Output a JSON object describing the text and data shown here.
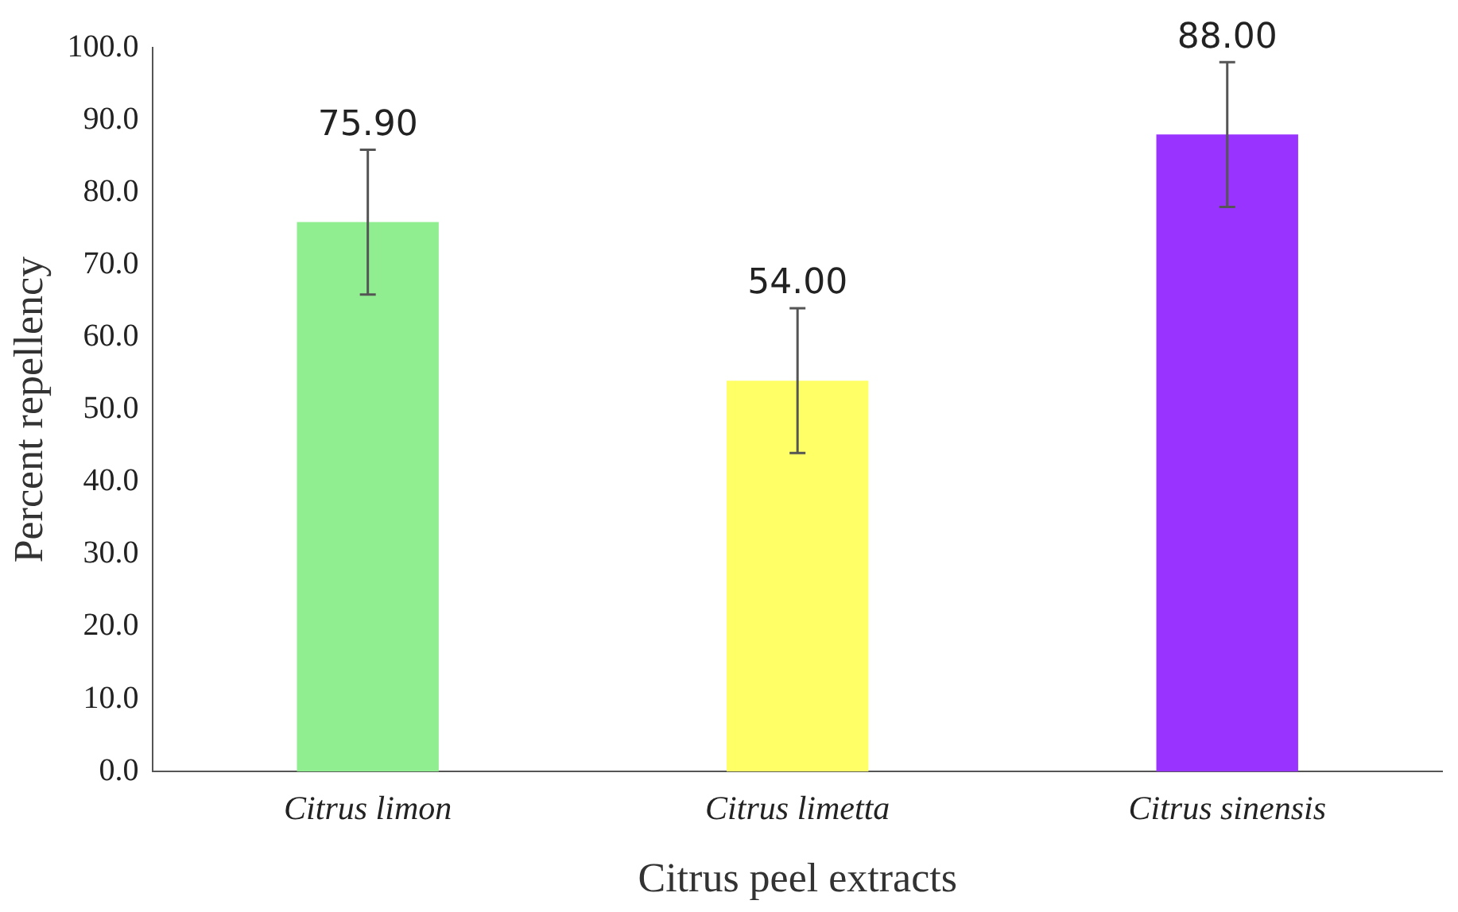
{
  "chart_data": {
    "type": "bar",
    "xlabel": "Citrus peel extracts",
    "ylabel": "Percent repellency",
    "categories": [
      "Citrus limon",
      "Citrus limetta",
      "Citrus sinensis"
    ],
    "values": [
      75.9,
      54.0,
      88.0
    ],
    "colors": [
      "#90ee90",
      "#ffff66",
      "#9933ff"
    ],
    "errors": [
      10,
      10,
      10
    ],
    "value_labels": [
      "75.90",
      "54.00",
      "88.00"
    ],
    "ylim": [
      0,
      100
    ],
    "yticks": [
      {
        "value": 0,
        "label": "0.0"
      },
      {
        "value": 10,
        "label": "10.0"
      },
      {
        "value": 20,
        "label": "20.0"
      },
      {
        "value": 30,
        "label": "30.0"
      },
      {
        "value": 40,
        "label": "40.0"
      },
      {
        "value": 50,
        "label": "50.0"
      },
      {
        "value": 60,
        "label": "60.0"
      },
      {
        "value": 70,
        "label": "70.0"
      },
      {
        "value": 80,
        "label": "80.0"
      },
      {
        "value": 90,
        "label": "90.0"
      },
      {
        "value": 100,
        "label": "100.0"
      }
    ],
    "grid": false,
    "legend": false
  }
}
